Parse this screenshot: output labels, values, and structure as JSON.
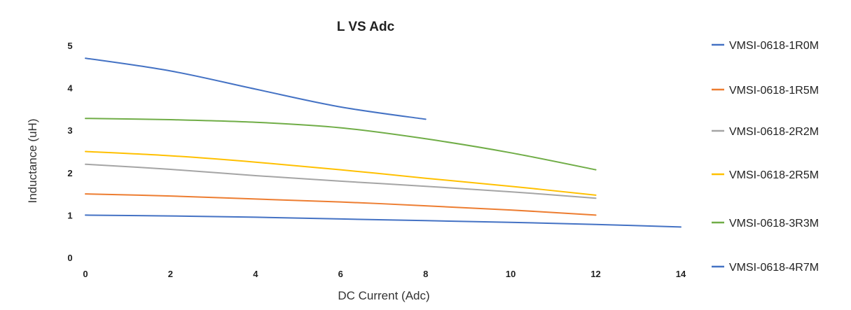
{
  "chart_data": {
    "type": "line",
    "title": "L VS Adc",
    "xlabel": "DC Current (Adc)",
    "ylabel": "Inductance (uH)",
    "xlim": [
      0,
      14
    ],
    "ylim": [
      0,
      5
    ],
    "xticks": [
      0,
      2,
      4,
      6,
      8,
      10,
      12,
      14
    ],
    "yticks": [
      0,
      1,
      2,
      3,
      4,
      5
    ],
    "grid": false,
    "legend": "right",
    "series": [
      {
        "name": "VMSI-0618-1R0M",
        "color": "#4472c4",
        "x": [
          0,
          2,
          4,
          6,
          8,
          10,
          12,
          14
        ],
        "y": [
          1.0,
          0.98,
          0.95,
          0.91,
          0.87,
          0.83,
          0.78,
          0.72
        ]
      },
      {
        "name": "VMSI-0618-1R5M",
        "color": "#ed7d31",
        "x": [
          0,
          2,
          4,
          6,
          8,
          10,
          12
        ],
        "y": [
          1.5,
          1.45,
          1.38,
          1.31,
          1.22,
          1.12,
          1.0
        ]
      },
      {
        "name": "VMSI-0618-2R2M",
        "color": "#a5a5a5",
        "x": [
          0,
          2,
          4,
          6,
          8,
          10,
          12
        ],
        "y": [
          2.2,
          2.08,
          1.93,
          1.8,
          1.68,
          1.55,
          1.4
        ]
      },
      {
        "name": "VMSI-0618-2R5M",
        "color": "#ffc000",
        "x": [
          0,
          2,
          4,
          6,
          8,
          10,
          12
        ],
        "y": [
          2.5,
          2.4,
          2.25,
          2.07,
          1.87,
          1.68,
          1.47
        ]
      },
      {
        "name": "VMSI-0618-3R3M",
        "color": "#70ad47",
        "x": [
          0,
          2,
          4,
          6,
          8,
          10,
          12
        ],
        "y": [
          3.28,
          3.25,
          3.19,
          3.06,
          2.8,
          2.47,
          2.07
        ]
      },
      {
        "name": "VMSI-0618-4R7M",
        "color": "#4472c4",
        "x": [
          0,
          2,
          4,
          6,
          8
        ],
        "y": [
          4.7,
          4.4,
          3.97,
          3.55,
          3.26
        ]
      }
    ]
  }
}
